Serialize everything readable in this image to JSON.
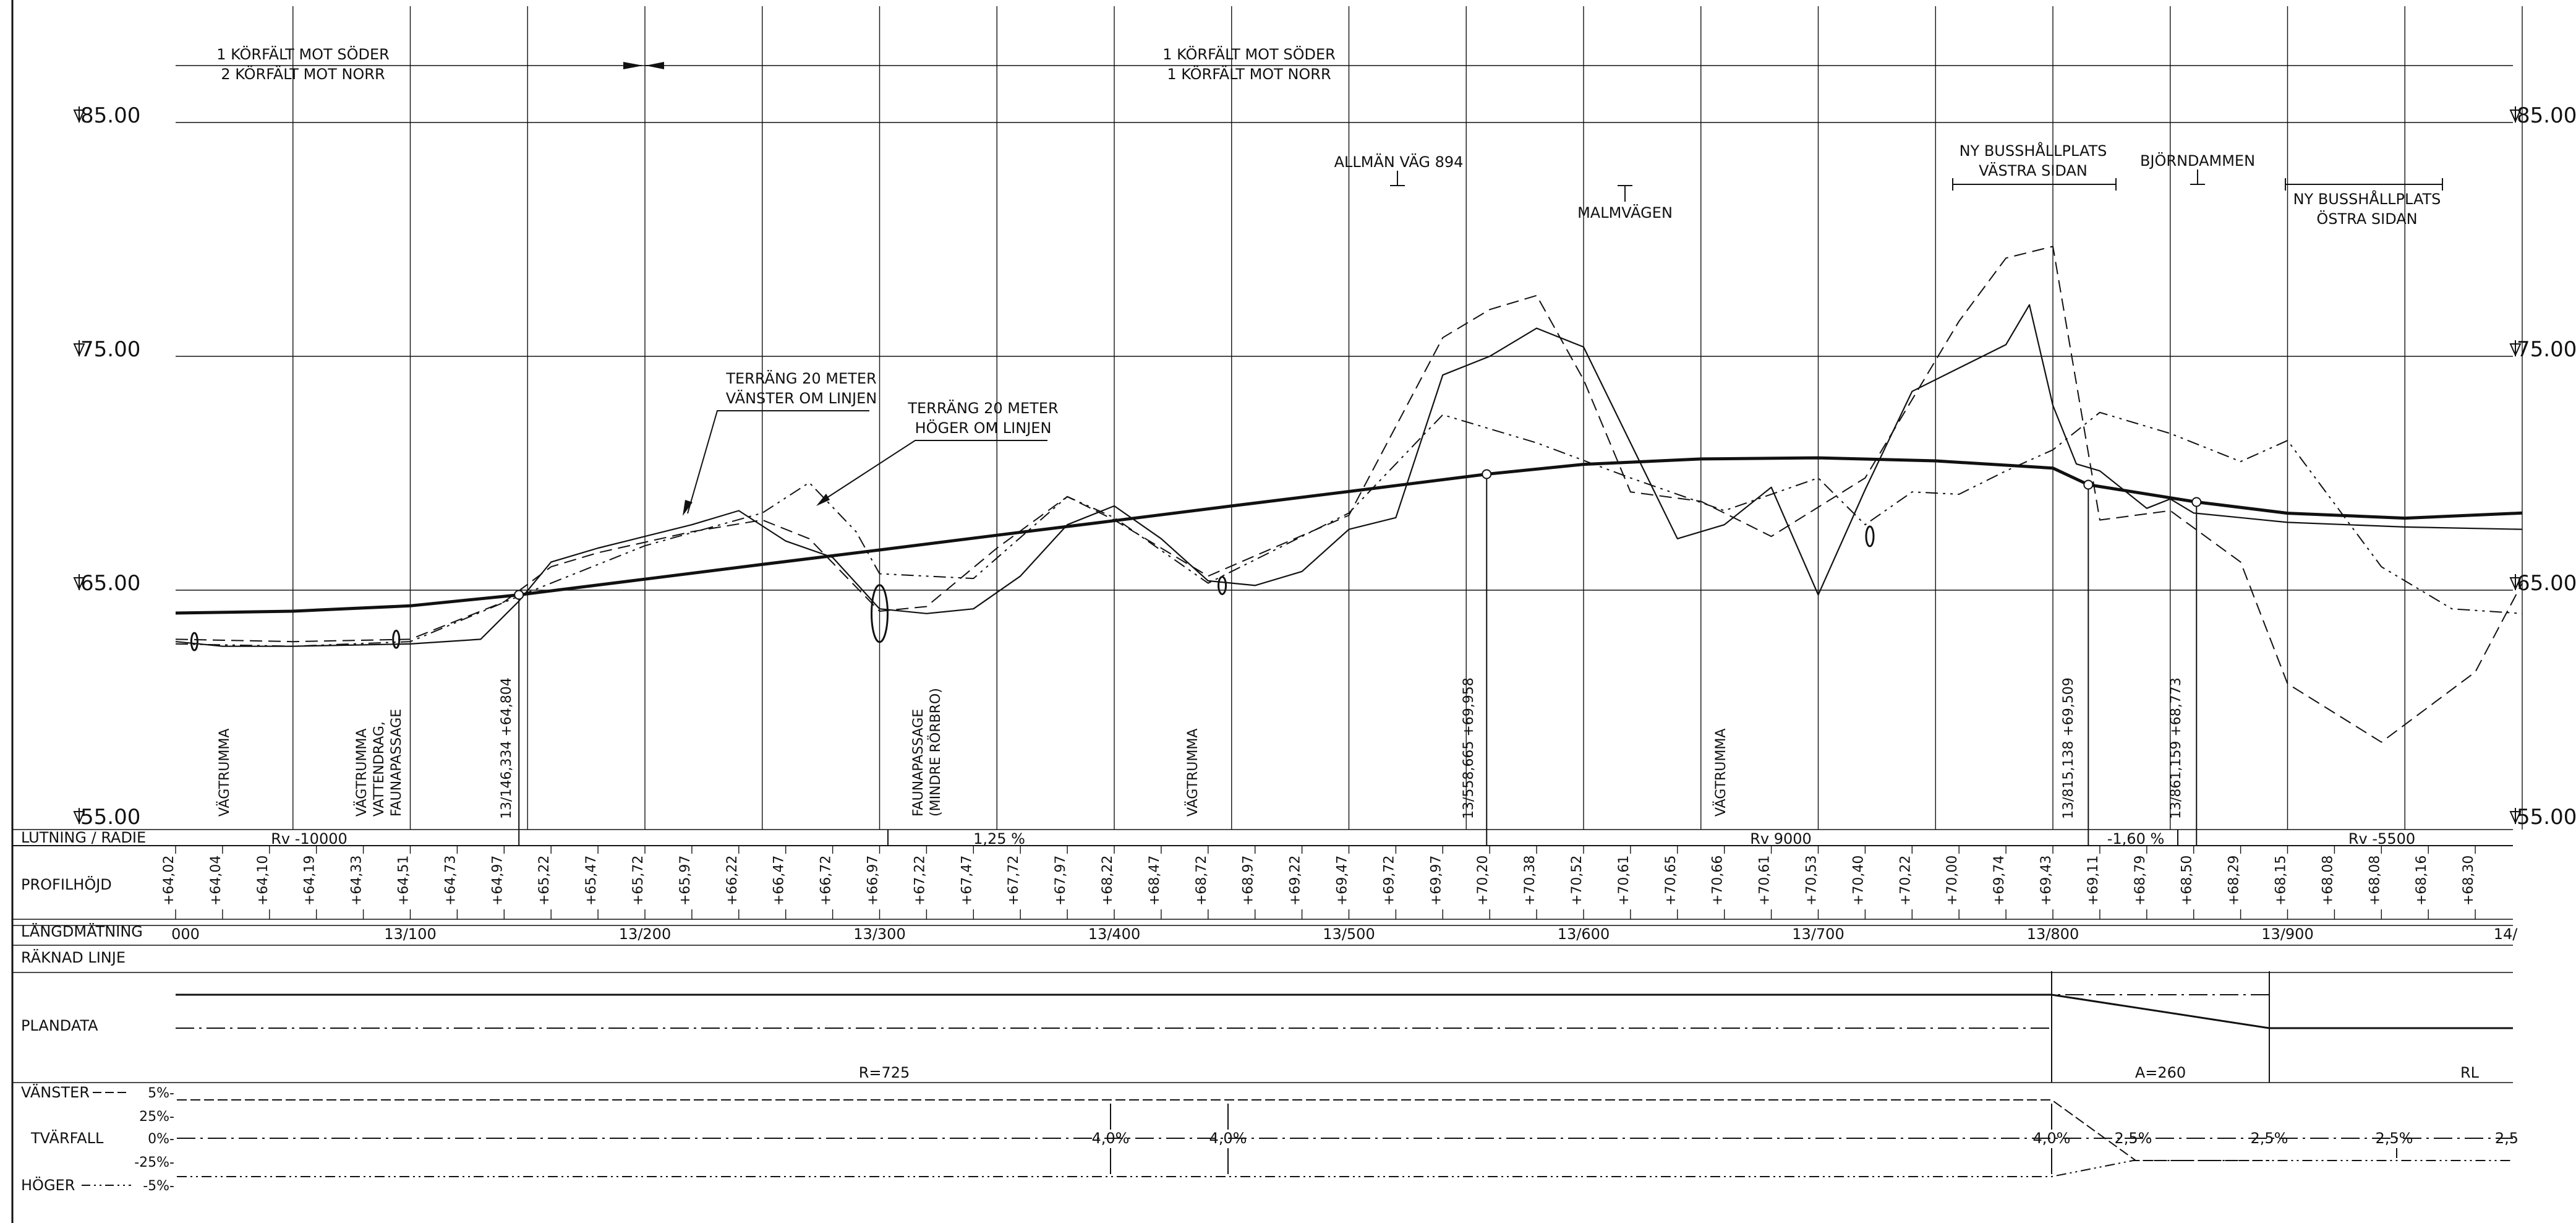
{
  "header": {
    "lanes_left": [
      "1 KÖRFÄLT MOT SÖDER",
      "2 KÖRFÄLT MOT NORR"
    ],
    "lanes_right": [
      "1 KÖRFÄLT MOT SÖDER",
      "1 KÖRFÄLT MOT NORR"
    ]
  },
  "elevations": [
    "85.00",
    "75.00",
    "65.00",
    "55.00"
  ],
  "annotations": {
    "allman_vag": "ALLMÄN VÄG 894",
    "malmvagen": "MALMVÄGEN",
    "busshallplats_vastra": [
      "NY BUSSHÅLLPLATS",
      "VÄSTRA SIDAN"
    ],
    "bjorndammen": "BJÖRNDAMMEN",
    "busshallplats_ostra": [
      "NY BUSSHÅLLPLATS",
      "ÖSTRA SIDAN"
    ],
    "terrain_left": [
      "TERRÄNG 20 METER",
      "VÄNSTER OM LINJEN"
    ],
    "terrain_right": [
      "TERRÄNG 20 METER",
      "HÖGER OM LINJEN"
    ]
  },
  "vertical_labels": [
    {
      "id": "vagtrumma-1",
      "text": [
        "VÄGTRUMMA"
      ]
    },
    {
      "id": "vagtrumma-2",
      "text": [
        "VÄGTRUMMA",
        "VATTENDRAG,",
        "FAUNAPASSAGE"
      ]
    },
    {
      "id": "faunapassage",
      "text": [
        "FAUNAPASSAGE",
        "(MINDRE RÖRBRO)"
      ]
    },
    {
      "id": "vagtrumma-3",
      "text": [
        "VÄGTRUMMA"
      ]
    },
    {
      "id": "vagtrumma-4",
      "text": [
        "VÄGTRUMMA"
      ]
    }
  ],
  "breakpoints": [
    {
      "label": "13/146,334  +64,804"
    },
    {
      "label": "13/558,665  +69,958"
    },
    {
      "label": "13/815,138  +69,509"
    },
    {
      "label": "13/861,159  +68,773"
    }
  ],
  "rows": {
    "lutning": {
      "label": "LUTNING / RADIE",
      "values": [
        "Rv -10000",
        "1,25 %",
        "Rv 9000",
        "-1,60 %",
        "Rv -5500"
      ]
    },
    "profilhojd": {
      "label": "PROFILHÖJD",
      "values": [
        "+64,02",
        "+64,04",
        "+64,10",
        "+64,19",
        "+64,33",
        "+64,51",
        "+64,73",
        "+64,97",
        "+65,22",
        "+65,47",
        "+65,72",
        "+65,97",
        "+66,22",
        "+66,47",
        "+66,72",
        "+66,97",
        "+67,22",
        "+67,47",
        "+67,72",
        "+67,97",
        "+68,22",
        "+68,47",
        "+68,72",
        "+68,97",
        "+69,22",
        "+69,47",
        "+69,72",
        "+69,97",
        "+70,20",
        "+70,38",
        "+70,52",
        "+70,61",
        "+70,65",
        "+70,66",
        "+70,61",
        "+70,53",
        "+70,40",
        "+70,22",
        "+70,00",
        "+69,74",
        "+69,43",
        "+69,11",
        "+68,79",
        "+68,50",
        "+68,29",
        "+68,15",
        "+68,08",
        "+68,08",
        "+68,16",
        "+68,30"
      ]
    },
    "langdmatning": {
      "label": "LÄNGDMÄTNING",
      "values": [
        "000",
        "13/100",
        "13/200",
        "13/300",
        "13/400",
        "13/500",
        "13/600",
        "13/700",
        "13/800",
        "13/900",
        "14/"
      ]
    },
    "raknad_linje": {
      "label": "RÄKNAD LINJE"
    },
    "plandata": {
      "label": "PLANDATA",
      "values": [
        "R=725",
        "A=260",
        "RL"
      ]
    },
    "tvarfall": {
      "label": "TVÄRFALL",
      "vanster": "VÄNSTER",
      "hoger": "HÖGER",
      "scale": [
        "5%-",
        "25%-",
        "0%-",
        "-25%-",
        "-5%-"
      ],
      "values": [
        "4,0%",
        "4,0%",
        "4,0%",
        "2,5%",
        "2,5%",
        "2,5%",
        "2,5"
      ]
    }
  },
  "chart_data": {
    "type": "line",
    "title": "",
    "xlabel": "",
    "ylabel": "",
    "x_unit": "chainage (m)",
    "xlim": [
      0,
      1000
    ],
    "ylim": [
      55,
      85
    ],
    "series": [
      {
        "role": "profile",
        "x": [
          0,
          50,
          100,
          146.3,
          200,
          250,
          300,
          350,
          400,
          450,
          500,
          558.7,
          600,
          650,
          700,
          750,
          800,
          815.1,
          861.2,
          900,
          950,
          1000
        ],
        "y": [
          64.02,
          64.1,
          64.33,
          64.8,
          65.47,
          66.1,
          66.72,
          67.35,
          67.97,
          68.6,
          69.22,
          69.96,
          70.38,
          70.61,
          70.66,
          70.53,
          70.22,
          69.51,
          68.77,
          68.29,
          68.08,
          68.3
        ]
      },
      {
        "role": "terrain-centre",
        "x": [
          0,
          20,
          50,
          100,
          130,
          146,
          160,
          180,
          200,
          220,
          240,
          260,
          280,
          300,
          320,
          340,
          360,
          380,
          400,
          420,
          440,
          460,
          480,
          500,
          520,
          540,
          560,
          580,
          600,
          620,
          640,
          660,
          680,
          700,
          720,
          740,
          760,
          780,
          790,
          800,
          810,
          820,
          840,
          850,
          860,
          880,
          900,
          950,
          1000
        ],
        "y": [
          62.8,
          62.6,
          62.6,
          62.7,
          62.9,
          64.5,
          66.2,
          66.8,
          67.3,
          67.8,
          68.4,
          67.1,
          66.4,
          64.2,
          64.0,
          64.2,
          65.6,
          67.8,
          68.6,
          67.2,
          65.4,
          65.2,
          65.8,
          67.6,
          68.1,
          74.2,
          75.0,
          76.2,
          75.4,
          71.3,
          67.2,
          67.8,
          69.4,
          64.8,
          69.3,
          73.5,
          74.5,
          75.5,
          77.2,
          72.9,
          70.4,
          70.1,
          68.5,
          68.9,
          68.3,
          68.1,
          67.9,
          67.7,
          67.6
        ]
      },
      {
        "role": "terrain-left-20m",
        "x": [
          0,
          50,
          100,
          140,
          160,
          180,
          220,
          250,
          270,
          300,
          320,
          350,
          380,
          400,
          440,
          500,
          540,
          560,
          580,
          600,
          620,
          650,
          680,
          720,
          760,
          780,
          800,
          820,
          850,
          880,
          900,
          940,
          980,
          1000
        ],
        "y": [
          62.9,
          62.8,
          62.9,
          64.5,
          66.0,
          66.6,
          67.5,
          68.0,
          67.2,
          64.1,
          64.3,
          66.8,
          69.0,
          68.0,
          65.6,
          68.2,
          75.8,
          77.0,
          77.6,
          74.0,
          69.2,
          68.8,
          67.3,
          69.8,
          76.5,
          79.2,
          79.7,
          68.0,
          68.4,
          66.2,
          61.0,
          58.5,
          61.5,
          65.3
        ]
      },
      {
        "role": "terrain-right-20m",
        "x": [
          0,
          50,
          100,
          150,
          200,
          250,
          270,
          290,
          300,
          340,
          380,
          400,
          440,
          500,
          540,
          580,
          620,
          660,
          700,
          720,
          740,
          760,
          780,
          800,
          820,
          850,
          880,
          900,
          940,
          970,
          1000
        ],
        "y": [
          62.7,
          62.6,
          62.8,
          64.9,
          66.9,
          68.3,
          69.6,
          67.5,
          65.7,
          65.5,
          69.0,
          68.1,
          65.3,
          68.3,
          72.5,
          71.3,
          69.8,
          68.4,
          69.8,
          67.8,
          69.2,
          69.1,
          70.1,
          71.0,
          72.6,
          71.7,
          70.5,
          71.4,
          66.0,
          64.2,
          64.0
        ]
      }
    ]
  }
}
